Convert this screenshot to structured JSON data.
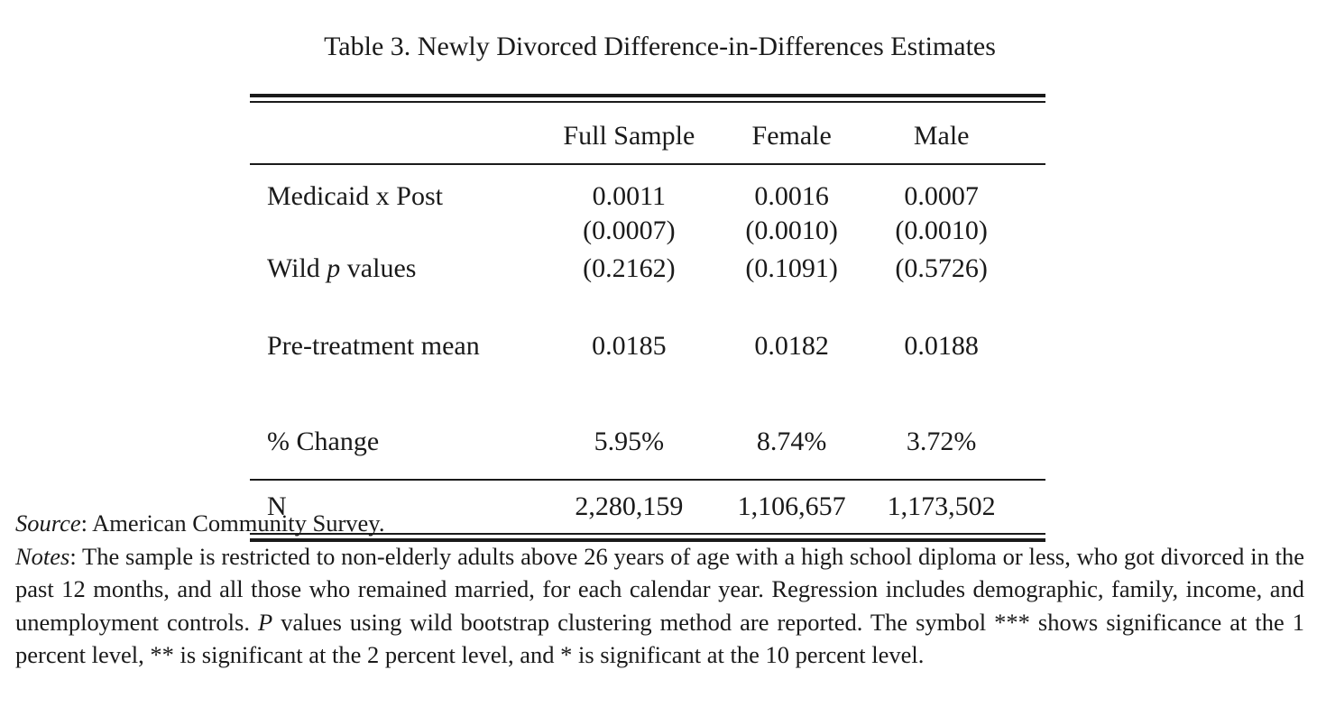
{
  "caption": "Table 3. Newly Divorced Difference-in-Differences Estimates",
  "table": {
    "columns": [
      "Full Sample",
      "Female",
      "Male"
    ],
    "rows": {
      "medicaid_post": {
        "label": "Medicaid x Post",
        "values": [
          "0.0011",
          "0.0016",
          "0.0007"
        ]
      },
      "std_errors": {
        "label": "",
        "values": [
          "(0.0007)",
          "(0.0010)",
          "(0.0010)"
        ]
      },
      "wild_p": {
        "label_pre": "Wild ",
        "label_italic": "p",
        "label_post": " values",
        "values": [
          "(0.2162)",
          "(0.1091)",
          "(0.5726)"
        ]
      },
      "pre_treatment": {
        "label": "Pre-treatment mean",
        "values": [
          "0.0185",
          "0.0182",
          "0.0188"
        ]
      },
      "pct_change": {
        "label": "% Change",
        "values": [
          "5.95%",
          "8.74%",
          "3.72%"
        ]
      },
      "n": {
        "label": "N",
        "values": [
          "2,280,159",
          "1,106,657",
          "1,173,502"
        ]
      }
    }
  },
  "notes": {
    "source_label": "Source",
    "source_text": ": American Community Survey.",
    "notes_label": "Notes",
    "notes_text_1": ": The sample is restricted to non-elderly adults above 26 years of age with a high school diploma or less, who got divorced in the past 12 months, and all those who remained married, for each calendar year.  Regression includes demographic, family, income, and unemployment controls.  ",
    "notes_p": "P",
    "notes_text_2": " values using wild bootstrap clustering method are reported.  The symbol *** shows significance at the 1 percent level, ** is significant at the 2 percent level, and * is significant at the 10 percent level."
  }
}
